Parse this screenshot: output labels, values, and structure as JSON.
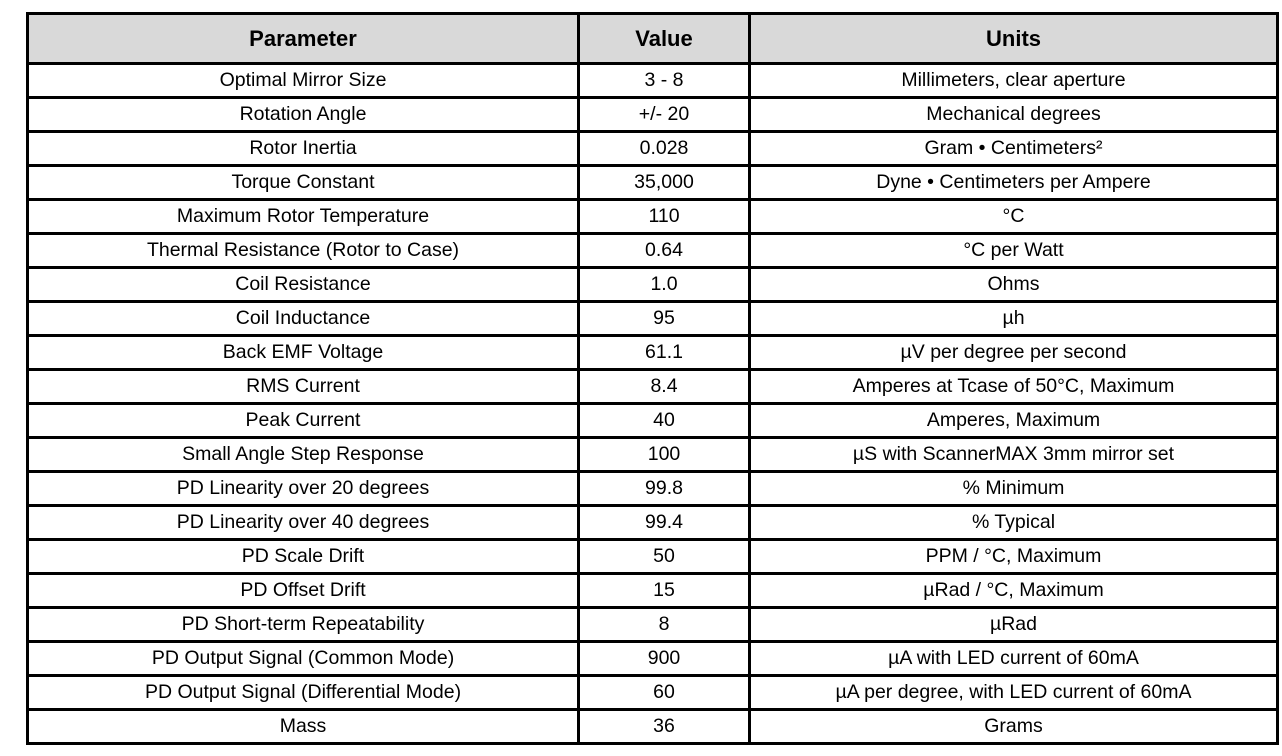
{
  "table": {
    "columns": [
      "Parameter",
      "Value",
      "Units"
    ],
    "rows": [
      {
        "parameter": "Optimal Mirror Size",
        "value": "3 - 8",
        "units": "Millimeters, clear aperture"
      },
      {
        "parameter": "Rotation Angle",
        "value": "+/- 20",
        "units": "Mechanical degrees"
      },
      {
        "parameter": "Rotor Inertia",
        "value": "0.028",
        "units": "Gram • Centimeters²"
      },
      {
        "parameter": "Torque Constant",
        "value": "35,000",
        "units": "Dyne • Centimeters per Ampere"
      },
      {
        "parameter": "Maximum Rotor Temperature",
        "value": "110",
        "units": "°C"
      },
      {
        "parameter": "Thermal Resistance (Rotor to Case)",
        "value": "0.64",
        "units": "°C per Watt"
      },
      {
        "parameter": "Coil Resistance",
        "value": "1.0",
        "units": "Ohms"
      },
      {
        "parameter": "Coil Inductance",
        "value": "95",
        "units": "µh"
      },
      {
        "parameter": "Back EMF Voltage",
        "value": "61.1",
        "units": "µV per degree per second"
      },
      {
        "parameter": "RMS Current",
        "value": "8.4",
        "units": "Amperes at Tcase of 50°C, Maximum"
      },
      {
        "parameter": "Peak Current",
        "value": "40",
        "units": "Amperes, Maximum"
      },
      {
        "parameter": "Small Angle Step Response",
        "value": "100",
        "units": "µS with ScannerMAX 3mm mirror set"
      },
      {
        "parameter": "PD Linearity over 20 degrees",
        "value": "99.8",
        "units": "% Minimum"
      },
      {
        "parameter": "PD Linearity over 40 degrees",
        "value": "99.4",
        "units": "% Typical"
      },
      {
        "parameter": "PD Scale Drift",
        "value": "50",
        "units": "PPM / °C, Maximum"
      },
      {
        "parameter": "PD Offset Drift",
        "value": "15",
        "units": "µRad / °C, Maximum"
      },
      {
        "parameter": "PD Short-term Repeatability",
        "value": "8",
        "units": "µRad"
      },
      {
        "parameter": "PD Output Signal (Common Mode)",
        "value": "900",
        "units": "µA with LED current of 60mA"
      },
      {
        "parameter": "PD Output Signal (Differential Mode)",
        "value": "60",
        "units": "µA per degree, with LED current of 60mA"
      },
      {
        "parameter": "Mass",
        "value": "36",
        "units": "Grams"
      }
    ]
  }
}
